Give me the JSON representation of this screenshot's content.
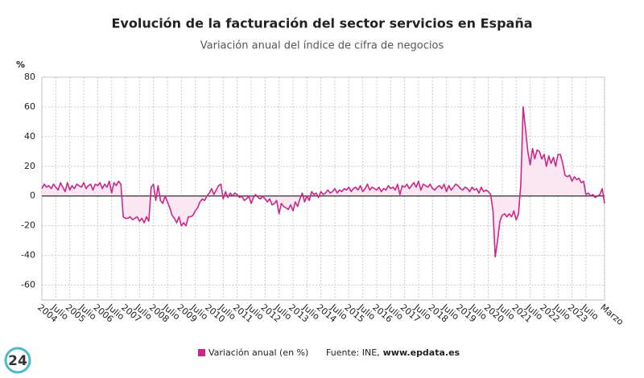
{
  "chart_data": {
    "type": "line",
    "title": "Evolución de la facturación del sector servicios en España",
    "subtitle": "Variación anual del índice de cifra de negocios",
    "y_label": "%",
    "source_label": "Fuente: INE,",
    "source_url": "www.epdata.es",
    "logo": "24",
    "grid": true,
    "ylim": [
      -70,
      80
    ],
    "yticks": [
      -60,
      -40,
      -20,
      0,
      20,
      40,
      60,
      80
    ],
    "categories": [
      "2004",
      null,
      null,
      null,
      null,
      null,
      "Julio",
      null,
      null,
      null,
      null,
      null,
      "2005",
      null,
      null,
      null,
      null,
      null,
      "Julio",
      null,
      null,
      null,
      null,
      null,
      "2006",
      null,
      null,
      null,
      null,
      null,
      "Julio",
      null,
      null,
      null,
      null,
      null,
      "2007",
      null,
      null,
      null,
      null,
      null,
      "Julio",
      null,
      null,
      null,
      null,
      null,
      "2008",
      null,
      null,
      null,
      null,
      null,
      "Julio",
      null,
      null,
      null,
      null,
      null,
      "2009",
      null,
      null,
      null,
      null,
      null,
      "Julio",
      null,
      null,
      null,
      null,
      null,
      "2010",
      null,
      null,
      null,
      null,
      null,
      "Julio",
      null,
      null,
      null,
      null,
      null,
      "2011",
      null,
      null,
      null,
      null,
      null,
      "Julio",
      null,
      null,
      null,
      null,
      null,
      "2012",
      null,
      null,
      null,
      null,
      null,
      "Julio",
      null,
      null,
      null,
      null,
      null,
      "2013",
      null,
      null,
      null,
      null,
      null,
      "Julio",
      null,
      null,
      null,
      null,
      null,
      "2014",
      null,
      null,
      null,
      null,
      null,
      "Julio",
      null,
      null,
      null,
      null,
      null,
      "2015",
      null,
      null,
      null,
      null,
      null,
      "Julio",
      null,
      null,
      null,
      null,
      null,
      "2016",
      null,
      null,
      null,
      null,
      null,
      "Julio",
      null,
      null,
      null,
      null,
      null,
      "2017",
      null,
      null,
      null,
      null,
      null,
      "Julio",
      null,
      null,
      null,
      null,
      null,
      "2018",
      null,
      null,
      null,
      null,
      null,
      "Julio",
      null,
      null,
      null,
      null,
      null,
      "2019",
      null,
      null,
      null,
      null,
      null,
      "Julio",
      null,
      null,
      null,
      null,
      null,
      "2020",
      null,
      null,
      null,
      null,
      null,
      "Julio",
      null,
      null,
      null,
      null,
      null,
      "2021",
      null,
      null,
      null,
      null,
      null,
      "Julio",
      null,
      null,
      null,
      null,
      null,
      "2022",
      null,
      null,
      null,
      null,
      null,
      "Julio",
      null,
      null,
      null,
      null,
      null,
      "2023",
      null,
      null,
      null,
      null,
      null,
      "Julio",
      null,
      null,
      null,
      null,
      null,
      null,
      null,
      "Marzo"
    ],
    "series": [
      {
        "name": "Variación anual (en %)",
        "color": "#c8288a",
        "fill": "#fbe6f2",
        "values": [
          5,
          8,
          6,
          7,
          5,
          8,
          6,
          4,
          9,
          6,
          3,
          9,
          4,
          7,
          5,
          8,
          7,
          6,
          9,
          5,
          7,
          8,
          4,
          8,
          7,
          9,
          5,
          8,
          6,
          10,
          2,
          9,
          7,
          10,
          8,
          -14,
          -15,
          -15,
          -14,
          -16,
          -15,
          -14,
          -17,
          -15,
          -18,
          -14,
          -17,
          6,
          8,
          -3,
          7,
          -3,
          -5,
          0,
          -4,
          -8,
          -13,
          -15,
          -18,
          -14,
          -20,
          -18,
          -20,
          -14,
          -14,
          -13,
          -10,
          -8,
          -4,
          -2,
          -3,
          0,
          2,
          5,
          1,
          4,
          7,
          8,
          -2,
          3,
          -1,
          2,
          0,
          2,
          1,
          -1,
          0,
          -3,
          -2,
          0,
          -5,
          -1,
          1,
          -1,
          -2,
          0,
          -2,
          -4,
          -2,
          -6,
          -5,
          -3,
          -12,
          -5,
          -7,
          -8,
          -9,
          -6,
          -10,
          -4,
          -7,
          -2,
          2,
          -4,
          0,
          -3,
          3,
          1,
          2,
          -1,
          3,
          1,
          2,
          4,
          2,
          3,
          5,
          2,
          4,
          3,
          5,
          4,
          6,
          3,
          5,
          6,
          4,
          7,
          3,
          5,
          8,
          4,
          6,
          5,
          4,
          6,
          3,
          5,
          4,
          7,
          5,
          6,
          4,
          8,
          1,
          7,
          6,
          8,
          5,
          7,
          9,
          6,
          10,
          4,
          8,
          7,
          6,
          8,
          5,
          4,
          6,
          7,
          5,
          8,
          3,
          7,
          4,
          6,
          8,
          7,
          5,
          4,
          6,
          5,
          3,
          6,
          4,
          5,
          2,
          6,
          3,
          4,
          3,
          1,
          -10,
          -41,
          -30,
          -17,
          -13,
          -12,
          -14,
          -12,
          -14,
          -10,
          -16,
          -12,
          8,
          60,
          45,
          30,
          21,
          32,
          25,
          31,
          30,
          25,
          28,
          20,
          27,
          22,
          26,
          20,
          28,
          28,
          22,
          14,
          13,
          14,
          10,
          13,
          11,
          12,
          9,
          10,
          1,
          2,
          0,
          1,
          -1,
          0,
          1,
          5,
          -5
        ]
      }
    ]
  }
}
